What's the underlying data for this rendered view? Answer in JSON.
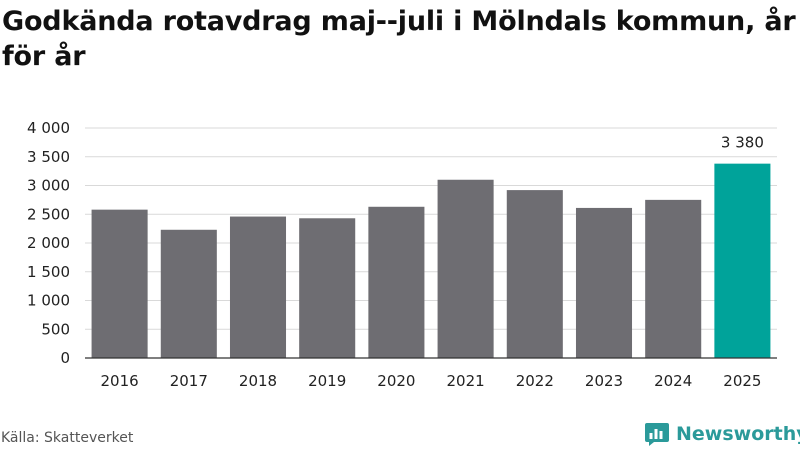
{
  "title": "Godkända rotavdrag maj--juli i Mölndals kommun, år för år",
  "source": "Källa: Skatteverket",
  "brand": {
    "name": "Newsworthy",
    "icon": "newsworthy-logo-icon"
  },
  "colors": {
    "bar": "#6e6d72",
    "highlight": "#00a39a",
    "grid": "#d9d9d9",
    "axis": "#333333",
    "brand": "#2b9a9a"
  },
  "chart_data": {
    "type": "bar",
    "categories": [
      "2016",
      "2017",
      "2018",
      "2019",
      "2020",
      "2021",
      "2022",
      "2023",
      "2024",
      "2025"
    ],
    "values": [
      2580,
      2230,
      2460,
      2430,
      2630,
      3100,
      2920,
      2610,
      2750,
      3380
    ],
    "highlight_index": 9,
    "value_labels": [
      {
        "index": 9,
        "text": "3 380"
      }
    ],
    "yticks": [
      0,
      500,
      1000,
      1500,
      2000,
      2500,
      3000,
      3500,
      4000
    ],
    "ytick_labels": [
      "0",
      "500",
      "1 000",
      "1 500",
      "2 000",
      "2 500",
      "3 000",
      "3 500",
      "4 000"
    ],
    "ylim": [
      0,
      4000
    ],
    "grid": true,
    "legend": "none",
    "xlabel": "",
    "ylabel": ""
  }
}
